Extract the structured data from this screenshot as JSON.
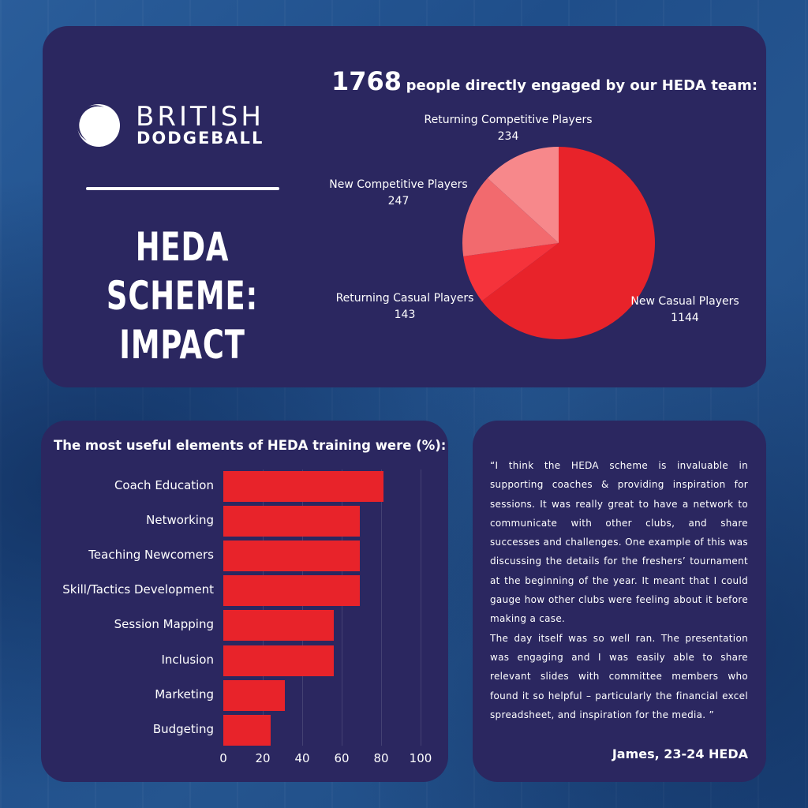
{
  "brand": {
    "line1": "BRITISH",
    "line2": "DODGEBALL"
  },
  "heading": {
    "line1": "HEDA SCHEME:",
    "line2": "IMPACT"
  },
  "pie": {
    "title_number": "1768",
    "title_text": "people directly engaged by our HEDA team:"
  },
  "bars": {
    "title": "The most useful elements of HEDA training were (%):"
  },
  "quote": {
    "para1": "“I think the HEDA scheme is invaluable in supporting coaches & providing inspiration for sessions. It was really great to have a network to communicate with other clubs, and share successes and challenges. One example of this was discussing the details for the freshers’ tournament at the beginning of the year. It meant that I could gauge how other clubs were feeling about it before making a case.",
    "para2": "The day itself was so well ran. The presentation was engaging and I was easily able to share relevant slides with committee members who found it so helpful – particularly the financial excel spreadsheet, and inspiration for the media. ”",
    "author": "James, 23-24 HEDA"
  },
  "colors": {
    "card": "#2b2760",
    "bar": "#e8232a",
    "pie": [
      "#e8232a",
      "#f5333b",
      "#f26a6e",
      "#f7888b"
    ]
  },
  "chart_data": [
    {
      "type": "pie",
      "title": "1768 people directly engaged by our HEDA team:",
      "slices": [
        {
          "label": "New Casual Players",
          "value": 1144
        },
        {
          "label": "Returning Casual Players",
          "value": 143
        },
        {
          "label": "New Competitive Players",
          "value": 247
        },
        {
          "label": "Returning Competitive Players",
          "value": 234
        }
      ]
    },
    {
      "type": "bar",
      "orientation": "horizontal",
      "title": "The most useful elements of HEDA training were (%):",
      "categories": [
        "Coach Education",
        "Networking",
        "Teaching Newcomers",
        "Skill/Tactics Development",
        "Session Mapping",
        "Inclusion",
        "Marketing",
        "Budgeting"
      ],
      "values": [
        81,
        69,
        69,
        69,
        56,
        56,
        31,
        24
      ],
      "xlim": [
        0,
        100
      ],
      "xticks": [
        "0",
        "20",
        "40",
        "60",
        "80",
        "100"
      ],
      "grid": true
    }
  ]
}
